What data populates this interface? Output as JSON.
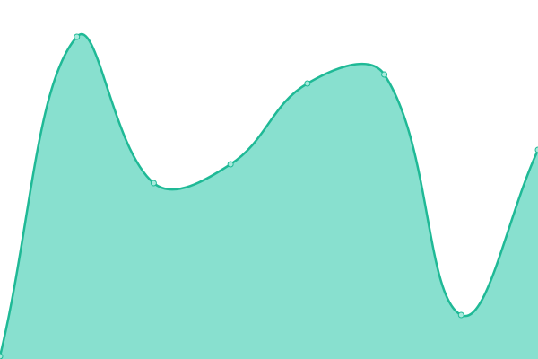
{
  "chart_data": {
    "type": "area",
    "values": [
      3,
      359,
      196,
      217,
      307,
      317,
      49,
      233
    ],
    "ylim": [
      0,
      400
    ],
    "color": "#1fb996",
    "fill": "#88e0cf",
    "point_fill": "#a8ebdd",
    "tension": 0.4
  }
}
